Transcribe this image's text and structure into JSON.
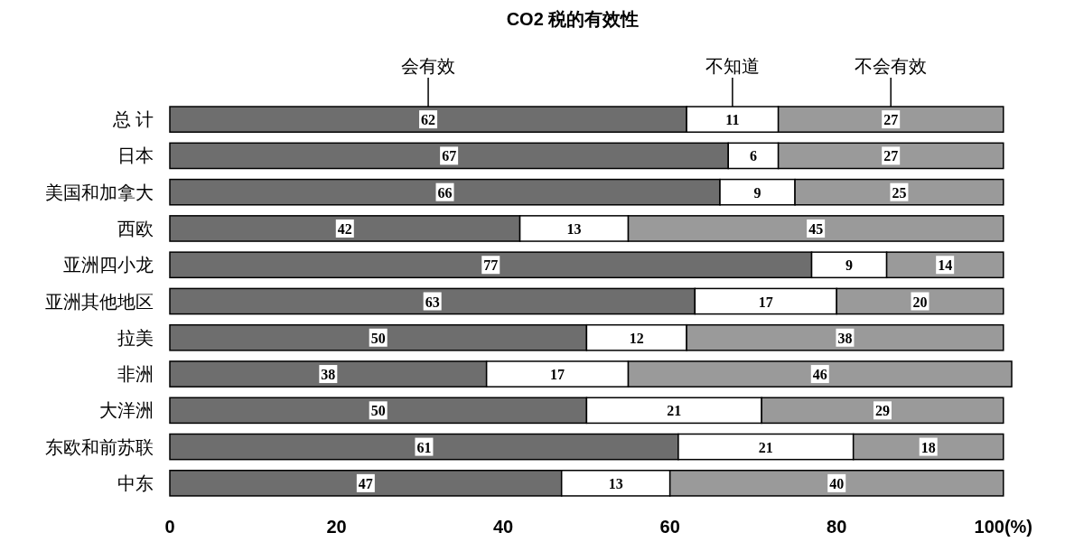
{
  "chart_data": {
    "type": "bar",
    "orientation": "horizontal",
    "stacked": true,
    "title": "CO2 税的有效性",
    "categories": [
      "总 计",
      "日本",
      "美国和加拿大",
      "西欧",
      "亚洲四小龙",
      "亚洲其他地区",
      "拉美",
      "非洲",
      "大洋洲",
      "东欧和前苏联",
      "中东"
    ],
    "series": [
      {
        "name": "会有效",
        "color": "#6e6e6e",
        "values": [
          62,
          67,
          66,
          42,
          77,
          63,
          50,
          38,
          50,
          61,
          47
        ]
      },
      {
        "name": "不知道",
        "color": "#ffffff",
        "values": [
          11,
          6,
          9,
          13,
          9,
          17,
          12,
          17,
          21,
          21,
          13
        ]
      },
      {
        "name": "不会有效",
        "color": "#9a9a9a",
        "values": [
          27,
          27,
          25,
          45,
          14,
          20,
          38,
          46,
          29,
          18,
          40
        ]
      }
    ],
    "xlim": [
      0,
      101
    ],
    "xticks": [
      0,
      20,
      40,
      60,
      80,
      {
        "value": 100,
        "label": "100(%)"
      }
    ],
    "data_labels": true,
    "legend": "top",
    "grid": false
  }
}
